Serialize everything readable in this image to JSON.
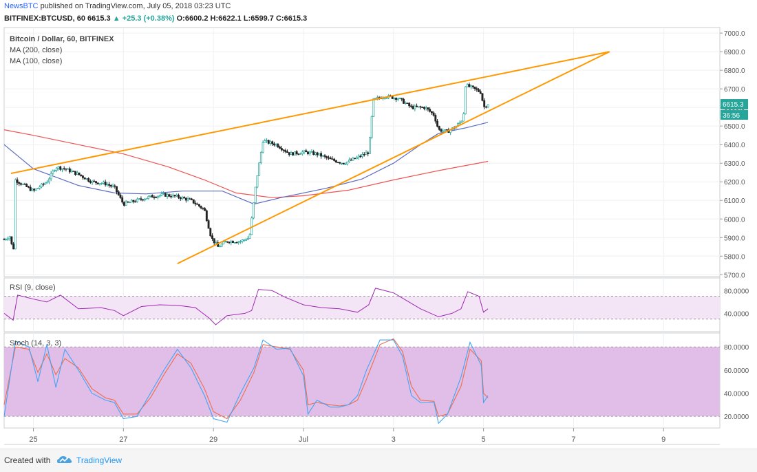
{
  "header": {
    "publisher": "NewsBTC",
    "published_text": " published on TradingView.com, July 05, 2018 03:23 UTC",
    "symbol": "BITFINEX:BTCUSD, 60",
    "last": "6615.3",
    "change": "▲ +25.3 (+0.38%)",
    "o_label": "O:",
    "o": "6600.2",
    "h_label": "H:",
    "h": "6622.1",
    "l_label": "L:",
    "l": "6599.7",
    "c_label": "C:",
    "c": "6615.3"
  },
  "footer": {
    "created_with": "Created with",
    "brand": "TradingView"
  },
  "colors": {
    "up": "#26a69a",
    "down": "#222222",
    "candle_up_fill": "#ffffff",
    "ma200": "#ef5350",
    "ma100": "#5c6bc0",
    "trendline": "#ff9800",
    "rsi_line": "#9c27b0",
    "rsi_band": "#f3e5f5",
    "stoch_k": "#42a5f5",
    "stoch_d": "#ef6c4a",
    "stoch_band": "#e1bee7",
    "grid": "#eef0f3",
    "axis_text": "#555555",
    "price_label": "#26a69a"
  },
  "chart_data": {
    "type": "candlestick",
    "title": "Bitcoin / Dollar, 60, BITFINEX",
    "legend": [
      "MA (200, close)",
      "MA (100, close)"
    ],
    "price_axis": {
      "ticks": [
        "7000.0",
        "6900.0",
        "6800.0",
        "6700.0",
        "6600.0",
        "6500.0",
        "6400.0",
        "6300.0",
        "6200.0",
        "6100.0",
        "6000.0",
        "5900.0",
        "5800.0",
        "5700.0"
      ],
      "range": [
        5690,
        7030
      ]
    },
    "x_ticks": [
      {
        "label": "25",
        "day": 25
      },
      {
        "label": "27",
        "day": 27
      },
      {
        "label": "29",
        "day": 29
      },
      {
        "label": "Jul",
        "day": 31
      },
      {
        "label": "3",
        "day": 33
      },
      {
        "label": "5",
        "day": 35
      },
      {
        "label": "7",
        "day": 37
      },
      {
        "label": "9",
        "day": 39
      }
    ],
    "x_range_days": [
      24.35,
      40.25
    ],
    "last_price_label": "6615.3",
    "countdown_label": "36:56",
    "price_path": [
      [
        24.35,
        5890
      ],
      [
        24.5,
        5910
      ],
      [
        24.55,
        5770
      ],
      [
        24.6,
        6210
      ],
      [
        24.8,
        6180
      ],
      [
        25.0,
        6150
      ],
      [
        25.3,
        6200
      ],
      [
        25.5,
        6280
      ],
      [
        25.7,
        6270
      ],
      [
        26.0,
        6240
      ],
      [
        26.3,
        6200
      ],
      [
        26.6,
        6190
      ],
      [
        26.8,
        6170
      ],
      [
        27.0,
        6080
      ],
      [
        27.3,
        6100
      ],
      [
        27.6,
        6120
      ],
      [
        27.9,
        6130
      ],
      [
        28.2,
        6120
      ],
      [
        28.5,
        6100
      ],
      [
        28.8,
        6050
      ],
      [
        28.95,
        5900
      ],
      [
        29.1,
        5850
      ],
      [
        29.3,
        5880
      ],
      [
        29.6,
        5880
      ],
      [
        29.8,
        5900
      ],
      [
        29.95,
        6200
      ],
      [
        30.1,
        6420
      ],
      [
        30.4,
        6400
      ],
      [
        30.7,
        6350
      ],
      [
        31.0,
        6360
      ],
      [
        31.3,
        6350
      ],
      [
        31.6,
        6320
      ],
      [
        31.9,
        6300
      ],
      [
        32.2,
        6330
      ],
      [
        32.45,
        6360
      ],
      [
        32.55,
        6640
      ],
      [
        32.8,
        6660
      ],
      [
        33.1,
        6650
      ],
      [
        33.4,
        6600
      ],
      [
        33.7,
        6600
      ],
      [
        33.9,
        6560
      ],
      [
        34.0,
        6480
      ],
      [
        34.2,
        6470
      ],
      [
        34.4,
        6500
      ],
      [
        34.55,
        6540
      ],
      [
        34.6,
        6720
      ],
      [
        34.8,
        6700
      ],
      [
        34.95,
        6680
      ],
      [
        35.0,
        6600
      ],
      [
        35.1,
        6620
      ]
    ],
    "ma200": [
      [
        24.35,
        6480
      ],
      [
        25.0,
        6450
      ],
      [
        26.0,
        6400
      ],
      [
        27.0,
        6350
      ],
      [
        28.0,
        6280
      ],
      [
        28.8,
        6210
      ],
      [
        29.5,
        6140
      ],
      [
        30.3,
        6115
      ],
      [
        31.0,
        6125
      ],
      [
        32.0,
        6155
      ],
      [
        33.0,
        6210
      ],
      [
        34.0,
        6260
      ],
      [
        35.1,
        6310
      ]
    ],
    "ma100": [
      [
        24.35,
        6400
      ],
      [
        25.0,
        6270
      ],
      [
        26.0,
        6180
      ],
      [
        26.8,
        6140
      ],
      [
        27.5,
        6135
      ],
      [
        28.3,
        6150
      ],
      [
        29.2,
        6150
      ],
      [
        29.9,
        6080
      ],
      [
        30.5,
        6115
      ],
      [
        31.5,
        6165
      ],
      [
        32.3,
        6215
      ],
      [
        33.0,
        6300
      ],
      [
        33.6,
        6400
      ],
      [
        34.0,
        6460
      ],
      [
        34.6,
        6490
      ],
      [
        35.1,
        6520
      ]
    ],
    "trendlines": [
      {
        "from": [
          24.5,
          6245
        ],
        "to": [
          37.8,
          6900
        ]
      },
      {
        "from": [
          28.2,
          5760
        ],
        "to": [
          37.8,
          6900
        ]
      }
    ],
    "rsi": {
      "label": "RSI (9, close)",
      "ticks": [
        "80.0000",
        "40.0000"
      ],
      "range": [
        8,
        102
      ],
      "band": [
        30,
        70
      ],
      "path": [
        [
          24.35,
          40
        ],
        [
          24.55,
          28
        ],
        [
          24.65,
          72
        ],
        [
          25.0,
          65
        ],
        [
          25.3,
          60
        ],
        [
          25.6,
          72
        ],
        [
          26.0,
          48
        ],
        [
          26.5,
          50
        ],
        [
          26.8,
          45
        ],
        [
          27.0,
          36
        ],
        [
          27.4,
          52
        ],
        [
          27.8,
          55
        ],
        [
          28.2,
          54
        ],
        [
          28.6,
          50
        ],
        [
          28.9,
          32
        ],
        [
          29.05,
          20
        ],
        [
          29.3,
          36
        ],
        [
          29.7,
          40
        ],
        [
          29.85,
          45
        ],
        [
          30.0,
          82
        ],
        [
          30.3,
          80
        ],
        [
          30.6,
          68
        ],
        [
          31.0,
          55
        ],
        [
          31.4,
          50
        ],
        [
          31.8,
          48
        ],
        [
          32.2,
          42
        ],
        [
          32.45,
          55
        ],
        [
          32.6,
          84
        ],
        [
          33.0,
          76
        ],
        [
          33.3,
          62
        ],
        [
          33.6,
          48
        ],
        [
          34.0,
          34
        ],
        [
          34.3,
          40
        ],
        [
          34.5,
          48
        ],
        [
          34.65,
          78
        ],
        [
          34.9,
          70
        ],
        [
          35.0,
          42
        ],
        [
          35.1,
          48
        ]
      ]
    },
    "stoch": {
      "label": "Stoch (14, 3, 3)",
      "ticks": [
        "80.0000",
        "60.0000",
        "40.0000",
        "20.0000"
      ],
      "range": [
        10,
        92
      ],
      "band": [
        20,
        80
      ],
      "k": [
        [
          24.35,
          20
        ],
        [
          24.6,
          85
        ],
        [
          24.9,
          80
        ],
        [
          25.1,
          50
        ],
        [
          25.3,
          82
        ],
        [
          25.5,
          45
        ],
        [
          25.7,
          78
        ],
        [
          26.0,
          60
        ],
        [
          26.3,
          40
        ],
        [
          26.6,
          34
        ],
        [
          26.8,
          32
        ],
        [
          27.0,
          18
        ],
        [
          27.3,
          20
        ],
        [
          27.6,
          40
        ],
        [
          27.9,
          60
        ],
        [
          28.2,
          78
        ],
        [
          28.5,
          62
        ],
        [
          28.8,
          38
        ],
        [
          29.0,
          18
        ],
        [
          29.3,
          15
        ],
        [
          29.6,
          40
        ],
        [
          29.9,
          62
        ],
        [
          30.1,
          86
        ],
        [
          30.4,
          78
        ],
        [
          30.7,
          79
        ],
        [
          31.0,
          55
        ],
        [
          31.1,
          22
        ],
        [
          31.3,
          34
        ],
        [
          31.6,
          28
        ],
        [
          31.8,
          28
        ],
        [
          32.0,
          30
        ],
        [
          32.2,
          38
        ],
        [
          32.4,
          60
        ],
        [
          32.7,
          86
        ],
        [
          33.0,
          86
        ],
        [
          33.2,
          72
        ],
        [
          33.4,
          38
        ],
        [
          33.6,
          32
        ],
        [
          33.9,
          32
        ],
        [
          34.0,
          14
        ],
        [
          34.2,
          22
        ],
        [
          34.5,
          54
        ],
        [
          34.7,
          84
        ],
        [
          34.95,
          64
        ],
        [
          35.0,
          32
        ],
        [
          35.1,
          38
        ]
      ],
      "d": [
        [
          24.35,
          30
        ],
        [
          24.6,
          80
        ],
        [
          24.9,
          78
        ],
        [
          25.1,
          58
        ],
        [
          25.3,
          74
        ],
        [
          25.5,
          56
        ],
        [
          25.7,
          70
        ],
        [
          26.0,
          62
        ],
        [
          26.3,
          44
        ],
        [
          26.6,
          36
        ],
        [
          26.8,
          34
        ],
        [
          27.0,
          22
        ],
        [
          27.3,
          22
        ],
        [
          27.6,
          36
        ],
        [
          27.9,
          56
        ],
        [
          28.2,
          74
        ],
        [
          28.5,
          66
        ],
        [
          28.8,
          44
        ],
        [
          29.0,
          24
        ],
        [
          29.3,
          18
        ],
        [
          29.6,
          34
        ],
        [
          29.9,
          58
        ],
        [
          30.1,
          82
        ],
        [
          30.4,
          80
        ],
        [
          30.7,
          78
        ],
        [
          31.0,
          60
        ],
        [
          31.1,
          30
        ],
        [
          31.3,
          32
        ],
        [
          31.6,
          30
        ],
        [
          31.8,
          29
        ],
        [
          32.0,
          30
        ],
        [
          32.2,
          34
        ],
        [
          32.4,
          52
        ],
        [
          32.7,
          82
        ],
        [
          33.0,
          87
        ],
        [
          33.2,
          76
        ],
        [
          33.4,
          46
        ],
        [
          33.6,
          34
        ],
        [
          33.9,
          33
        ],
        [
          34.0,
          20
        ],
        [
          34.2,
          22
        ],
        [
          34.5,
          46
        ],
        [
          34.7,
          78
        ],
        [
          34.95,
          68
        ],
        [
          35.0,
          40
        ],
        [
          35.1,
          36
        ]
      ]
    }
  }
}
